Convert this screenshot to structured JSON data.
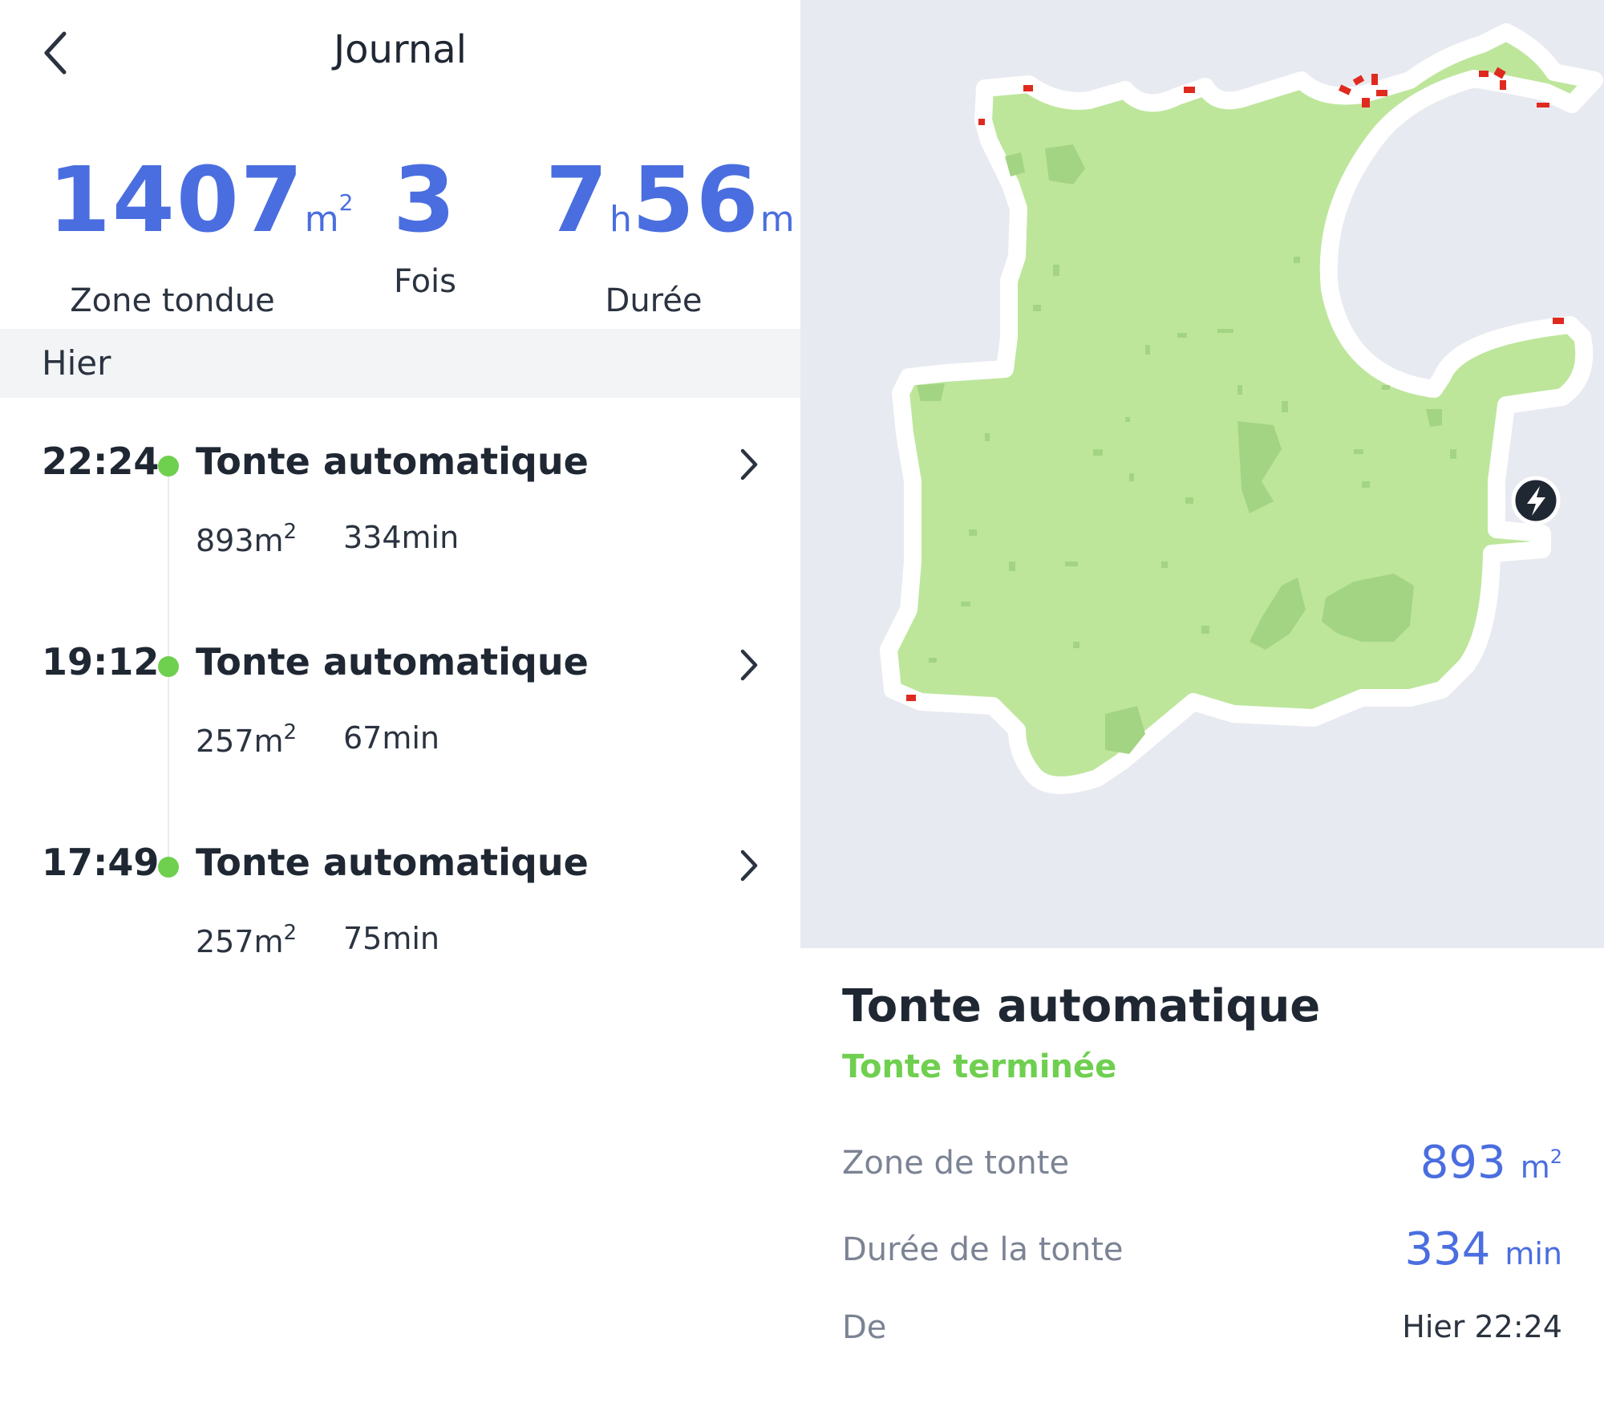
{
  "header": {
    "title": "Journal",
    "back_icon": "chevron-left-icon"
  },
  "summary": {
    "area_value": "1407",
    "area_unit": "m",
    "area_unit_exp": "2",
    "area_label": "Zone tondue",
    "count_value": "3",
    "count_label": "Fois",
    "duration_hours": "7",
    "duration_hours_unit": "h",
    "duration_minutes": "56",
    "duration_minutes_unit": "m",
    "duration_label": "Durée"
  },
  "section": {
    "label": "Hier"
  },
  "entries": [
    {
      "time": "22:24",
      "title": "Tonte automatique",
      "area": "893m",
      "area_exp": "2",
      "duration": "334min"
    },
    {
      "time": "19:12",
      "title": "Tonte automatique",
      "area": "257m",
      "area_exp": "2",
      "duration": "67min"
    },
    {
      "time": "17:49",
      "title": "Tonte automatique",
      "area": "257m",
      "area_exp": "2",
      "duration": "75min"
    }
  ],
  "map": {
    "lawn_color": "#bde69b",
    "lawn_dark_color": "#a3d483",
    "border_color": "#ffffff",
    "background_color": "#e8eaf1",
    "obstacle_color": "#e02a1f",
    "station_icon": "charging-bolt-icon"
  },
  "details": {
    "title": "Tonte automatique",
    "status": "Tonte terminée",
    "status_color": "#6fcf4f",
    "area_label": "Zone de tonte",
    "area_value": "893",
    "area_unit": "m",
    "area_unit_exp": "2",
    "duration_label": "Durée de la tonte",
    "duration_value": "334",
    "duration_unit": "min",
    "start_label": "De",
    "start_value": "Hier 22:24"
  },
  "colors": {
    "accent": "#4a6ee0",
    "text": "#1f2733",
    "muted": "#7b8394",
    "success": "#6fcf4f"
  }
}
